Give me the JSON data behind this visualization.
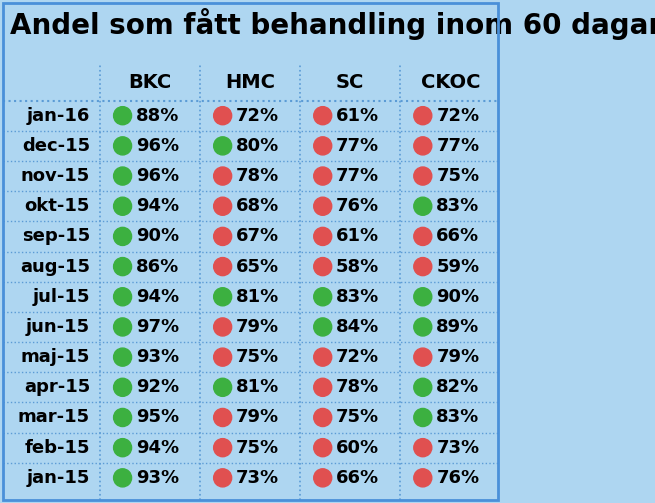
{
  "title": "Andel som fått behandling inom 60 dagar",
  "columns": [
    "BKC",
    "HMC",
    "SC",
    "CKOC"
  ],
  "rows": [
    "jan-16",
    "dec-15",
    "nov-15",
    "okt-15",
    "sep-15",
    "aug-15",
    "jul-15",
    "jun-15",
    "maj-15",
    "apr-15",
    "mar-15",
    "feb-15",
    "jan-15"
  ],
  "values": [
    [
      88,
      72,
      61,
      72
    ],
    [
      96,
      80,
      77,
      77
    ],
    [
      96,
      78,
      77,
      75
    ],
    [
      94,
      68,
      76,
      83
    ],
    [
      90,
      67,
      61,
      66
    ],
    [
      86,
      65,
      58,
      59
    ],
    [
      94,
      81,
      83,
      90
    ],
    [
      97,
      79,
      84,
      89
    ],
    [
      93,
      75,
      72,
      79
    ],
    [
      92,
      81,
      78,
      82
    ],
    [
      95,
      79,
      75,
      83
    ],
    [
      94,
      75,
      60,
      73
    ],
    [
      93,
      73,
      66,
      76
    ]
  ],
  "green_threshold": 80,
  "green_color": "#3cb040",
  "red_color": "#e05050",
  "bg_color": "#aed6f1",
  "title_fontsize": 20,
  "header_fontsize": 14,
  "cell_fontsize": 13,
  "row_label_fontsize": 13,
  "border_color": "#4a90d9",
  "grid_color": "#5b9bd5"
}
